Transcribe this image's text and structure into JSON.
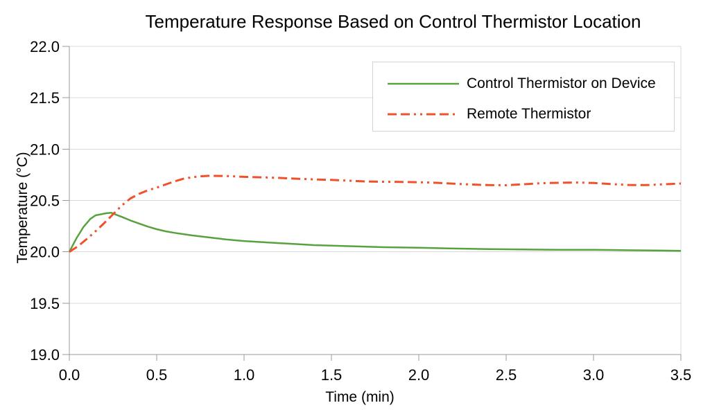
{
  "chart_data": {
    "type": "line",
    "title": "Temperature Response Based on Control Thermistor Location",
    "xlabel": "Time (min)",
    "ylabel": "Temperature (°C)",
    "xlim": [
      0.0,
      3.5
    ],
    "ylim": [
      19.0,
      22.0
    ],
    "grid": "horizontal",
    "legend_position": "top-right",
    "background_color": "#ffffff",
    "grid_color": "#d8d8d8",
    "axis_color": "#9a9a9a",
    "x_ticks": [
      {
        "value": 0.0,
        "label": "0.0"
      },
      {
        "value": 0.5,
        "label": "0.5"
      },
      {
        "value": 1.0,
        "label": "1.0"
      },
      {
        "value": 1.5,
        "label": "1.5"
      },
      {
        "value": 2.0,
        "label": "2.0"
      },
      {
        "value": 2.5,
        "label": "2.5"
      },
      {
        "value": 3.0,
        "label": "3.0"
      },
      {
        "value": 3.5,
        "label": "3.5"
      }
    ],
    "y_ticks": [
      {
        "value": 19.0,
        "label": "19.0"
      },
      {
        "value": 19.5,
        "label": "19.5"
      },
      {
        "value": 20.0,
        "label": "20.0"
      },
      {
        "value": 20.5,
        "label": "20.5"
      },
      {
        "value": 21.0,
        "label": "21.0"
      },
      {
        "value": 21.5,
        "label": "21.5"
      },
      {
        "value": 22.0,
        "label": "22.0"
      }
    ],
    "series": [
      {
        "name": "Control Thermistor on Device",
        "color": "#58a23e",
        "style": "solid",
        "width": 2.5,
        "dasharray": "",
        "points": [
          [
            0.0,
            20.0
          ],
          [
            0.04,
            20.13
          ],
          [
            0.08,
            20.24
          ],
          [
            0.12,
            20.32
          ],
          [
            0.15,
            20.355
          ],
          [
            0.18,
            20.365
          ],
          [
            0.21,
            20.375
          ],
          [
            0.24,
            20.38
          ],
          [
            0.27,
            20.36
          ],
          [
            0.3,
            20.34
          ],
          [
            0.35,
            20.305
          ],
          [
            0.4,
            20.275
          ],
          [
            0.45,
            20.245
          ],
          [
            0.5,
            20.22
          ],
          [
            0.55,
            20.2
          ],
          [
            0.6,
            20.185
          ],
          [
            0.7,
            20.16
          ],
          [
            0.8,
            20.14
          ],
          [
            0.9,
            20.12
          ],
          [
            1.0,
            20.105
          ],
          [
            1.1,
            20.095
          ],
          [
            1.2,
            20.085
          ],
          [
            1.3,
            20.075
          ],
          [
            1.4,
            20.065
          ],
          [
            1.5,
            20.06
          ],
          [
            1.6,
            20.055
          ],
          [
            1.7,
            20.05
          ],
          [
            1.8,
            20.045
          ],
          [
            1.9,
            20.042
          ],
          [
            2.0,
            20.04
          ],
          [
            2.2,
            20.032
          ],
          [
            2.4,
            20.027
          ],
          [
            2.6,
            20.023
          ],
          [
            2.8,
            20.02
          ],
          [
            3.0,
            20.02
          ],
          [
            3.2,
            20.015
          ],
          [
            3.4,
            20.012
          ],
          [
            3.5,
            20.01
          ]
        ]
      },
      {
        "name": "Remote Thermistor",
        "color": "#f0512b",
        "style": "dash-dash-dot-dot",
        "width": 3,
        "dasharray": "13 6 13 6 3 6 3 6",
        "points": [
          [
            0.0,
            20.0
          ],
          [
            0.05,
            20.055
          ],
          [
            0.1,
            20.125
          ],
          [
            0.15,
            20.2
          ],
          [
            0.2,
            20.28
          ],
          [
            0.25,
            20.365
          ],
          [
            0.3,
            20.45
          ],
          [
            0.35,
            20.52
          ],
          [
            0.4,
            20.565
          ],
          [
            0.45,
            20.6
          ],
          [
            0.5,
            20.625
          ],
          [
            0.55,
            20.655
          ],
          [
            0.6,
            20.685
          ],
          [
            0.65,
            20.71
          ],
          [
            0.7,
            20.725
          ],
          [
            0.75,
            20.735
          ],
          [
            0.8,
            20.74
          ],
          [
            0.9,
            20.738
          ],
          [
            1.0,
            20.73
          ],
          [
            1.1,
            20.725
          ],
          [
            1.2,
            20.72
          ],
          [
            1.3,
            20.712
          ],
          [
            1.4,
            20.705
          ],
          [
            1.5,
            20.7
          ],
          [
            1.6,
            20.692
          ],
          [
            1.7,
            20.685
          ],
          [
            1.8,
            20.682
          ],
          [
            1.9,
            20.68
          ],
          [
            2.0,
            20.678
          ],
          [
            2.1,
            20.672
          ],
          [
            2.2,
            20.663
          ],
          [
            2.3,
            20.655
          ],
          [
            2.4,
            20.65
          ],
          [
            2.5,
            20.648
          ],
          [
            2.6,
            20.658
          ],
          [
            2.7,
            20.668
          ],
          [
            2.8,
            20.672
          ],
          [
            2.9,
            20.675
          ],
          [
            3.0,
            20.67
          ],
          [
            3.1,
            20.66
          ],
          [
            3.2,
            20.651
          ],
          [
            3.3,
            20.65
          ],
          [
            3.4,
            20.657
          ],
          [
            3.5,
            20.665
          ]
        ]
      }
    ]
  }
}
